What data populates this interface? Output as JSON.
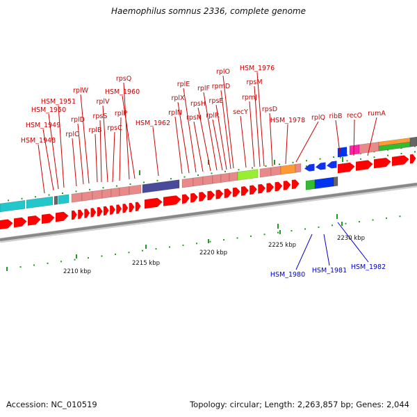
{
  "title": "Haemophilus somnus 2336, complete genome",
  "accession": "Accession: NC_010519",
  "stats": "Topology: circular; Length: 2,263,857 bp; Genes: 2,044",
  "colors": {
    "upper_label": "#cc0000",
    "lower_label": "#0000cc",
    "backbone": "#888888",
    "cds": "#ff0000",
    "tick": "#229922"
  },
  "scale_labels": [
    "2210 kbp",
    "2215 kbp",
    "2220 kbp",
    "2225 kbp",
    "2230 kbp"
  ],
  "upper_genes": [
    "HSM_1948",
    "HSM_1949",
    "HSM_1950",
    "HSM_1951",
    "rplC",
    "rplD",
    "rplW",
    "rplB",
    "rpsS",
    "rplV",
    "rpsC",
    "rplP",
    "rpsQ",
    "HSM_1960",
    "HSM_1962",
    "rplN",
    "rplX",
    "rplE",
    "rpsN",
    "rpsH",
    "rplF",
    "rplR",
    "rpsE",
    "rpmD",
    "rplO",
    "secY",
    "rpmJ",
    "rpsM",
    "HSM_1976",
    "rpsD",
    "HSM_1978",
    "rplQ",
    "ribB",
    "recO",
    "rumA"
  ],
  "lower_genes": [
    "HSM_1980",
    "HSM_1981",
    "HSM_1982"
  ]
}
